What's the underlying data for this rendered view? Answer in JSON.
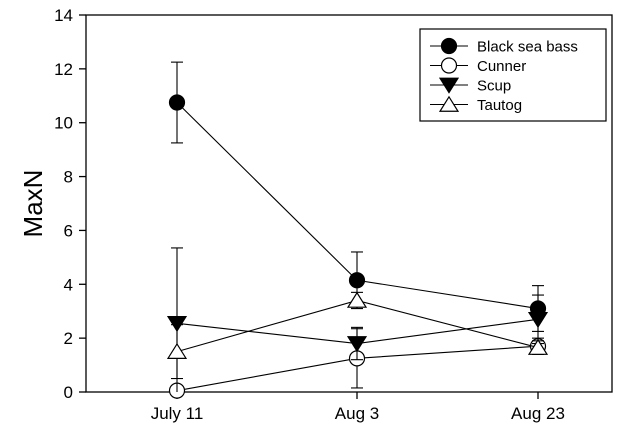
{
  "chart_data": {
    "type": "line",
    "title": "",
    "xlabel": "",
    "ylabel": "MaxN",
    "categories": [
      "July 11",
      "Aug 3",
      "Aug 23"
    ],
    "ylim": [
      0,
      14
    ],
    "yticks": [
      0,
      2,
      4,
      6,
      8,
      10,
      12,
      14
    ],
    "grid": false,
    "legend_position": "top-right",
    "error_bars": true,
    "series": [
      {
        "name": "Black sea bass",
        "marker": "filled-circle",
        "values": [
          10.75,
          4.15,
          3.1
        ],
        "error": [
          1.5,
          1.05,
          0.85
        ]
      },
      {
        "name": "Cunner",
        "marker": "open-circle",
        "values": [
          0.05,
          1.25,
          1.7
        ],
        "error": [
          0.0,
          1.1,
          0.3
        ]
      },
      {
        "name": "Scup",
        "marker": "filled-triangle-down",
        "values": [
          2.55,
          1.8,
          2.7
        ],
        "error": [
          2.8,
          0.6,
          0.9
        ]
      },
      {
        "name": "Tautog",
        "marker": "open-triangle-up",
        "values": [
          1.5,
          3.4,
          1.65
        ],
        "error": [
          1.0,
          0.3,
          0.25
        ]
      }
    ]
  }
}
